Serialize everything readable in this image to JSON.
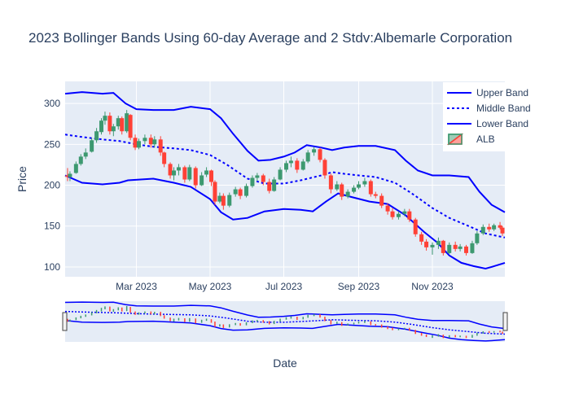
{
  "chart_data": {
    "type": "candlestick",
    "title": "2023 Bollinger Bands Using 60-day Average and 2 Stdv:Albemarle Corporation",
    "xlabel": "Date",
    "ylabel": "Price",
    "ylim": [
      88,
      327
    ],
    "y_ticks": [
      100,
      150,
      200,
      250,
      300
    ],
    "x_range": [
      "2023-01-01",
      "2023-12-31"
    ],
    "x_ticks": [
      {
        "date": "2023-03-01",
        "label": "Mar 2023"
      },
      {
        "date": "2023-05-01",
        "label": "May 2023"
      },
      {
        "date": "2023-07-01",
        "label": "Jul 2023"
      },
      {
        "date": "2023-09-01",
        "label": "Sep 2023"
      },
      {
        "date": "2023-11-01",
        "label": "Nov 2023"
      }
    ],
    "grid": true,
    "legend_position": "top-right",
    "range_slider": true,
    "colors": {
      "increasing": "#3d9970",
      "decreasing": "#ff4136",
      "band": "#0000ff",
      "plot_bg": "#e5ecf6",
      "grid": "#ffffff"
    },
    "series": [
      {
        "name": "Upper Band",
        "style": "solid",
        "points": [
          [
            "2023-01-01",
            312
          ],
          [
            "2023-01-15",
            314
          ],
          [
            "2023-02-01",
            312
          ],
          [
            "2023-02-10",
            313
          ],
          [
            "2023-02-20",
            300
          ],
          [
            "2023-03-01",
            293
          ],
          [
            "2023-03-15",
            292
          ],
          [
            "2023-04-01",
            292
          ],
          [
            "2023-04-15",
            296
          ],
          [
            "2023-05-01",
            293
          ],
          [
            "2023-05-10",
            282
          ],
          [
            "2023-05-20",
            263
          ],
          [
            "2023-06-01",
            242
          ],
          [
            "2023-06-10",
            230
          ],
          [
            "2023-06-20",
            231
          ],
          [
            "2023-07-01",
            235
          ],
          [
            "2023-07-10",
            240
          ],
          [
            "2023-07-20",
            249
          ],
          [
            "2023-08-01",
            246
          ],
          [
            "2023-08-10",
            243
          ],
          [
            "2023-08-20",
            246
          ],
          [
            "2023-09-01",
            248
          ],
          [
            "2023-09-15",
            248
          ],
          [
            "2023-10-01",
            243
          ],
          [
            "2023-10-10",
            230
          ],
          [
            "2023-10-20",
            218
          ],
          [
            "2023-11-01",
            212
          ],
          [
            "2023-11-15",
            212
          ],
          [
            "2023-12-01",
            210
          ],
          [
            "2023-12-10",
            192
          ],
          [
            "2023-12-20",
            176
          ],
          [
            "2023-12-31",
            167
          ]
        ]
      },
      {
        "name": "Middle Band",
        "style": "dotted",
        "points": [
          [
            "2023-01-01",
            262
          ],
          [
            "2023-01-15",
            259
          ],
          [
            "2023-02-01",
            256
          ],
          [
            "2023-02-15",
            254
          ],
          [
            "2023-03-01",
            250
          ],
          [
            "2023-03-15",
            247
          ],
          [
            "2023-04-01",
            245
          ],
          [
            "2023-04-15",
            243
          ],
          [
            "2023-05-01",
            237
          ],
          [
            "2023-05-15",
            225
          ],
          [
            "2023-06-01",
            208
          ],
          [
            "2023-06-15",
            202
          ],
          [
            "2023-07-01",
            202
          ],
          [
            "2023-07-15",
            206
          ],
          [
            "2023-08-01",
            212
          ],
          [
            "2023-08-10",
            216
          ],
          [
            "2023-08-20",
            214
          ],
          [
            "2023-09-01",
            212
          ],
          [
            "2023-09-15",
            210
          ],
          [
            "2023-10-01",
            203
          ],
          [
            "2023-10-15",
            190
          ],
          [
            "2023-11-01",
            172
          ],
          [
            "2023-11-15",
            160
          ],
          [
            "2023-12-01",
            150
          ],
          [
            "2023-12-15",
            141
          ],
          [
            "2023-12-31",
            136
          ]
        ]
      },
      {
        "name": "Lower Band",
        "style": "solid",
        "points": [
          [
            "2023-01-01",
            212
          ],
          [
            "2023-01-15",
            203
          ],
          [
            "2023-02-01",
            201
          ],
          [
            "2023-02-15",
            203
          ],
          [
            "2023-02-22",
            206
          ],
          [
            "2023-03-15",
            208
          ],
          [
            "2023-04-01",
            203
          ],
          [
            "2023-04-15",
            198
          ],
          [
            "2023-05-01",
            183
          ],
          [
            "2023-05-10",
            167
          ],
          [
            "2023-05-20",
            158
          ],
          [
            "2023-06-01",
            160
          ],
          [
            "2023-06-15",
            168
          ],
          [
            "2023-07-01",
            171
          ],
          [
            "2023-07-15",
            170
          ],
          [
            "2023-07-25",
            168
          ],
          [
            "2023-08-05",
            180
          ],
          [
            "2023-08-15",
            190
          ],
          [
            "2023-08-25",
            186
          ],
          [
            "2023-09-10",
            180
          ],
          [
            "2023-09-25",
            177
          ],
          [
            "2023-10-10",
            163
          ],
          [
            "2023-10-25",
            143
          ],
          [
            "2023-11-05",
            130
          ],
          [
            "2023-11-15",
            114
          ],
          [
            "2023-11-25",
            105
          ],
          [
            "2023-12-05",
            101
          ],
          [
            "2023-12-15",
            98
          ],
          [
            "2023-12-20",
            100
          ],
          [
            "2023-12-31",
            105
          ]
        ]
      },
      {
        "name": "ALB",
        "style": "candlestick",
        "points": [
          [
            "2023-01-03",
            212,
            221,
            205,
            210
          ],
          [
            "2023-01-05",
            210,
            217,
            205,
            214
          ],
          [
            "2023-01-10",
            215,
            229,
            214,
            226
          ],
          [
            "2023-01-14",
            226,
            238,
            224,
            235
          ],
          [
            "2023-01-18",
            235,
            245,
            232,
            240
          ],
          [
            "2023-01-23",
            241,
            258,
            240,
            255
          ],
          [
            "2023-01-27",
            255,
            270,
            252,
            266
          ],
          [
            "2023-01-31",
            265,
            282,
            262,
            279
          ],
          [
            "2023-02-03",
            279,
            290,
            274,
            285
          ],
          [
            "2023-02-07",
            285,
            289,
            262,
            266
          ],
          [
            "2023-02-10",
            266,
            275,
            260,
            272
          ],
          [
            "2023-02-14",
            272,
            285,
            268,
            282
          ],
          [
            "2023-02-17",
            282,
            284,
            262,
            266
          ],
          [
            "2023-02-21",
            266,
            292,
            264,
            288
          ],
          [
            "2023-02-24",
            286,
            287,
            255,
            258
          ],
          [
            "2023-02-28",
            258,
            262,
            243,
            246
          ],
          [
            "2023-03-03",
            246,
            257,
            244,
            254
          ],
          [
            "2023-03-08",
            254,
            262,
            250,
            258
          ],
          [
            "2023-03-13",
            258,
            262,
            246,
            250
          ],
          [
            "2023-03-16",
            250,
            260,
            246,
            256
          ],
          [
            "2023-03-21",
            256,
            260,
            236,
            240
          ],
          [
            "2023-03-24",
            240,
            241,
            222,
            226
          ],
          [
            "2023-03-29",
            226,
            228,
            208,
            212
          ],
          [
            "2023-04-01",
            212,
            222,
            206,
            218
          ],
          [
            "2023-04-05",
            218,
            226,
            212,
            222
          ],
          [
            "2023-04-10",
            222,
            224,
            203,
            207
          ],
          [
            "2023-04-14",
            207,
            225,
            205,
            222
          ],
          [
            "2023-04-19",
            221,
            223,
            196,
            200
          ],
          [
            "2023-04-24",
            200,
            216,
            199,
            212
          ],
          [
            "2023-04-28",
            213,
            222,
            210,
            218
          ],
          [
            "2023-05-02",
            218,
            219,
            199,
            204
          ],
          [
            "2023-05-05",
            204,
            206,
            176,
            180
          ],
          [
            "2023-05-09",
            180,
            191,
            178,
            187
          ],
          [
            "2023-05-12",
            187,
            190,
            170,
            175
          ],
          [
            "2023-05-17",
            175,
            191,
            173,
            188
          ],
          [
            "2023-05-22",
            189,
            198,
            186,
            195
          ],
          [
            "2023-05-26",
            195,
            197,
            183,
            187
          ],
          [
            "2023-05-31",
            187,
            202,
            185,
            199
          ],
          [
            "2023-06-05",
            199,
            212,
            197,
            209
          ],
          [
            "2023-06-09",
            209,
            215,
            205,
            212
          ],
          [
            "2023-06-14",
            212,
            214,
            200,
            204
          ],
          [
            "2023-06-19",
            204,
            208,
            190,
            193
          ],
          [
            "2023-06-23",
            193,
            210,
            192,
            207
          ],
          [
            "2023-06-28",
            207,
            222,
            206,
            219
          ],
          [
            "2023-07-03",
            219,
            230,
            216,
            227
          ],
          [
            "2023-07-07",
            227,
            235,
            222,
            230
          ],
          [
            "2023-07-12",
            230,
            233,
            215,
            219
          ],
          [
            "2023-07-17",
            219,
            232,
            218,
            229
          ],
          [
            "2023-07-21",
            229,
            243,
            227,
            240
          ],
          [
            "2023-07-26",
            240,
            247,
            236,
            244
          ],
          [
            "2023-07-31",
            244,
            246,
            228,
            231
          ],
          [
            "2023-08-04",
            231,
            233,
            208,
            212
          ],
          [
            "2023-08-09",
            212,
            214,
            190,
            195
          ],
          [
            "2023-08-14",
            195,
            205,
            193,
            201
          ],
          [
            "2023-08-18",
            201,
            203,
            182,
            186
          ],
          [
            "2023-08-23",
            186,
            195,
            184,
            192
          ],
          [
            "2023-08-28",
            192,
            200,
            190,
            197
          ],
          [
            "2023-09-01",
            197,
            205,
            195,
            201
          ],
          [
            "2023-09-06",
            201,
            209,
            198,
            205
          ],
          [
            "2023-09-11",
            205,
            207,
            186,
            189
          ],
          [
            "2023-09-15",
            189,
            192,
            184,
            187
          ],
          [
            "2023-09-20",
            187,
            190,
            172,
            175
          ],
          [
            "2023-09-25",
            175,
            178,
            164,
            168
          ],
          [
            "2023-09-29",
            168,
            172,
            158,
            161
          ],
          [
            "2023-10-04",
            161,
            168,
            158,
            165
          ],
          [
            "2023-10-09",
            165,
            171,
            162,
            168
          ],
          [
            "2023-10-13",
            168,
            171,
            155,
            158
          ],
          [
            "2023-10-18",
            158,
            160,
            137,
            140
          ],
          [
            "2023-10-23",
            140,
            143,
            127,
            131
          ],
          [
            "2023-10-27",
            131,
            134,
            120,
            124
          ],
          [
            "2023-11-01",
            124,
            130,
            115,
            127
          ],
          [
            "2023-11-06",
            127,
            136,
            122,
            132
          ],
          [
            "2023-11-10",
            132,
            133,
            114,
            117
          ],
          [
            "2023-11-15",
            117,
            130,
            116,
            127
          ],
          [
            "2023-11-20",
            127,
            131,
            119,
            122
          ],
          [
            "2023-11-24",
            122,
            128,
            119,
            125
          ],
          [
            "2023-11-29",
            125,
            127,
            114,
            117
          ],
          [
            "2023-12-04",
            117,
            132,
            116,
            129
          ],
          [
            "2023-12-08",
            129,
            144,
            127,
            141
          ],
          [
            "2023-12-13",
            141,
            152,
            139,
            149
          ],
          [
            "2023-12-18",
            149,
            153,
            143,
            146
          ],
          [
            "2023-12-22",
            146,
            153,
            144,
            151
          ],
          [
            "2023-12-27",
            151,
            155,
            146,
            148
          ],
          [
            "2023-12-29",
            148,
            150,
            138,
            141
          ]
        ]
      }
    ]
  }
}
